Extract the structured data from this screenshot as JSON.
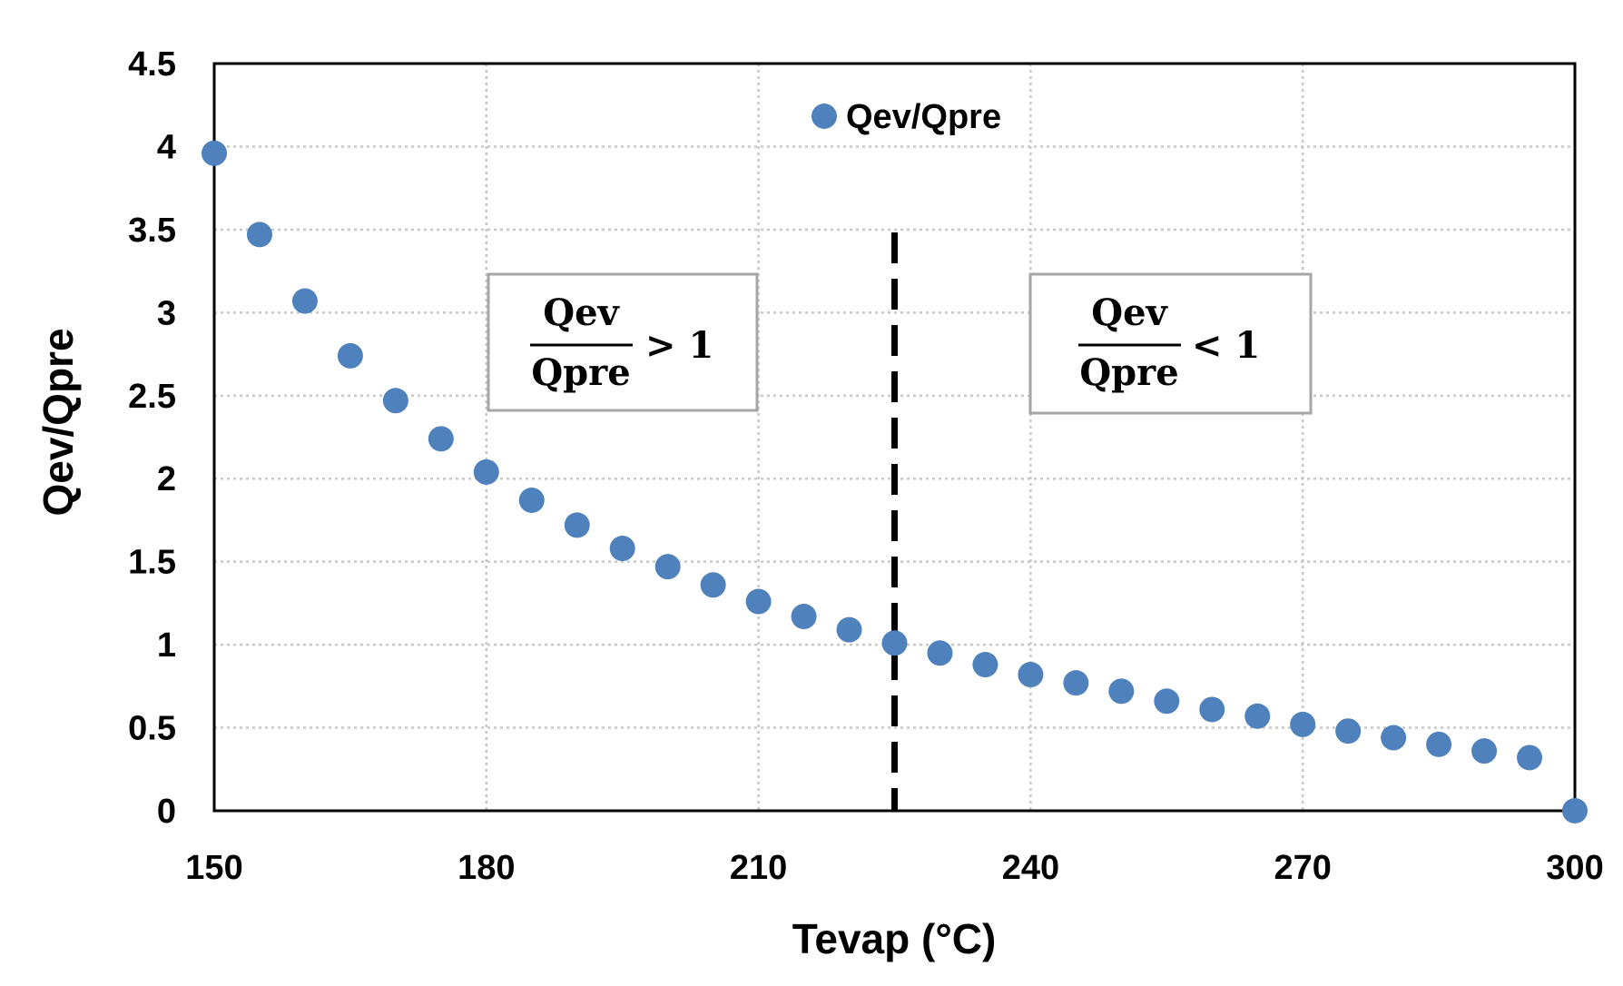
{
  "chart_data": {
    "type": "scatter",
    "title": "",
    "xlabel": "Tevap (°C)",
    "ylabel": "Qev/Qpre",
    "xlim": [
      150,
      300
    ],
    "ylim": [
      0,
      4.5
    ],
    "xticks": [
      150,
      180,
      210,
      240,
      270,
      300
    ],
    "yticks": [
      0,
      0.5,
      1,
      1.5,
      2,
      2.5,
      3,
      3.5,
      4,
      4.5
    ],
    "xtick_labels": [
      "150",
      "180",
      "210",
      "240",
      "270",
      "300"
    ],
    "ytick_labels": [
      "0",
      "0.5",
      "1",
      "1.5",
      "2",
      "2.5",
      "3",
      "3.5",
      "4",
      "4.5"
    ],
    "grid": true,
    "legend": {
      "position": "top-center",
      "entries": [
        "Qev/Qpre"
      ]
    },
    "series": [
      {
        "name": "Qev/Qpre",
        "color": "#4F81BD",
        "x": [
          150,
          155,
          160,
          165,
          170,
          175,
          180,
          185,
          190,
          195,
          200,
          205,
          210,
          215,
          220,
          225,
          230,
          235,
          240,
          245,
          250,
          255,
          260,
          265,
          270,
          275,
          280,
          285,
          290,
          295,
          300
        ],
        "y": [
          3.96,
          3.47,
          3.07,
          2.74,
          2.47,
          2.24,
          2.04,
          1.87,
          1.72,
          1.58,
          1.47,
          1.36,
          1.26,
          1.17,
          1.09,
          1.01,
          0.95,
          0.88,
          0.82,
          0.77,
          0.72,
          0.66,
          0.61,
          0.57,
          0.52,
          0.48,
          0.44,
          0.4,
          0.36,
          0.32,
          0.0
        ]
      }
    ],
    "annotations": [
      {
        "type": "vline",
        "x": 225,
        "style": "dashed",
        "color": "#000000"
      },
      {
        "type": "fraction-box",
        "numerator": "Qev",
        "denominator": "Qpre",
        "relation": "> 1",
        "region": "left"
      },
      {
        "type": "fraction-box",
        "numerator": "Qev",
        "denominator": "Qpre",
        "relation": "< 1",
        "region": "right"
      }
    ]
  }
}
